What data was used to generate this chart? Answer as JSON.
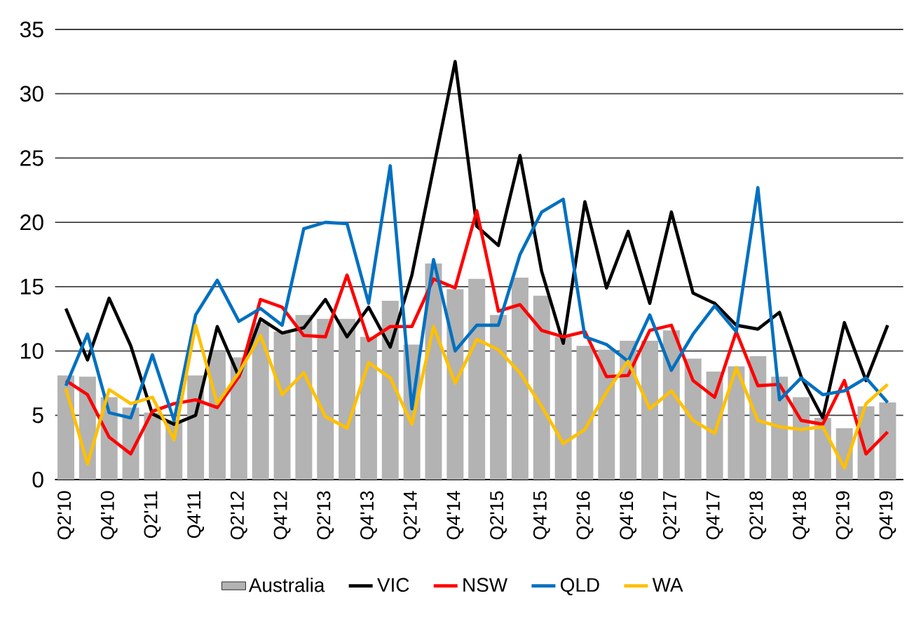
{
  "chart_data": {
    "type": "line",
    "categories": [
      "Q2'10",
      null,
      "Q4'10",
      null,
      "Q2'11",
      null,
      "Q4'11",
      null,
      "Q2'12",
      null,
      "Q4'12",
      null,
      "Q2'13",
      null,
      "Q4'13",
      null,
      "Q2'14",
      null,
      "Q4'14",
      null,
      "Q2'15",
      null,
      "Q4'15",
      null,
      "Q2'16",
      null,
      "Q4'16",
      null,
      "Q2'17",
      null,
      "Q4'17",
      null,
      "Q2'18",
      null,
      "Q4'18",
      null,
      "Q2'19",
      null,
      "Q4'19"
    ],
    "ylim": [
      0,
      35
    ],
    "yticks": [
      0,
      5,
      10,
      15,
      20,
      25,
      30,
      35
    ],
    "grid": "y",
    "legend": "bottom",
    "marker": "none",
    "line_style": "solid",
    "series": [
      {
        "name": "Australia",
        "type": "bar",
        "color": "#b3b3b3",
        "values": [
          8.1,
          8.0,
          6.4,
          5.6,
          5.2,
          4.6,
          8.1,
          10.0,
          9.5,
          12.2,
          11.5,
          12.8,
          12.5,
          12.5,
          11.1,
          13.9,
          10.5,
          16.8,
          14.8,
          15.6,
          12.8,
          15.7,
          14.3,
          11.1,
          10.4,
          10.1,
          10.8,
          10.8,
          11.6,
          9.4,
          8.4,
          8.8,
          9.6,
          8.0,
          6.4,
          4.8,
          4.0,
          5.7,
          6.0
        ]
      },
      {
        "name": "VIC",
        "color": "#000000",
        "values": [
          13.3,
          9.3,
          14.1,
          10.4,
          5.1,
          4.3,
          5.0,
          11.9,
          8.0,
          12.5,
          11.4,
          11.8,
          14.0,
          11.1,
          13.4,
          10.3,
          15.9,
          24.2,
          32.5,
          19.7,
          18.2,
          25.2,
          16.2,
          10.6,
          21.6,
          14.9,
          19.3,
          13.7,
          20.8,
          14.5,
          13.7,
          12.0,
          11.7,
          13.0,
          8.0,
          4.8,
          12.2,
          7.7,
          12.0
        ]
      },
      {
        "name": "NSW",
        "color": "#ff0000",
        "values": [
          7.7,
          6.6,
          3.3,
          2.0,
          5.3,
          5.9,
          6.2,
          5.6,
          8.0,
          14.0,
          13.4,
          11.2,
          11.1,
          15.9,
          10.8,
          11.9,
          11.9,
          15.6,
          14.9,
          20.9,
          13.1,
          13.6,
          11.6,
          11.1,
          11.5,
          8.0,
          8.1,
          11.6,
          12.0,
          7.7,
          6.4,
          11.5,
          7.3,
          7.4,
          4.6,
          4.3,
          7.7,
          2.0,
          3.7
        ]
      },
      {
        "name": "QLD",
        "color": "#0070c0",
        "values": [
          7.3,
          11.3,
          5.2,
          4.8,
          9.7,
          4.6,
          12.8,
          15.5,
          12.3,
          13.3,
          12.0,
          19.5,
          20.0,
          19.9,
          13.7,
          24.4,
          5.5,
          17.1,
          10.0,
          12.0,
          12.0,
          17.5,
          20.8,
          21.8,
          11.1,
          10.5,
          9.2,
          12.8,
          8.5,
          11.3,
          13.5,
          11.5,
          22.7,
          6.2,
          7.9,
          6.6,
          6.9,
          7.9,
          6.0
        ]
      },
      {
        "name": "WA",
        "color": "#ffc000",
        "values": [
          7.1,
          1.2,
          7.0,
          5.9,
          6.4,
          3.1,
          12.0,
          5.9,
          8.3,
          11.2,
          6.6,
          8.3,
          4.9,
          4.0,
          9.1,
          7.9,
          4.3,
          11.9,
          7.5,
          10.9,
          10.1,
          8.3,
          5.7,
          2.8,
          3.9,
          6.8,
          9.2,
          5.5,
          6.9,
          4.6,
          3.6,
          8.7,
          4.6,
          4.1,
          3.9,
          4.1,
          0.9,
          5.9,
          7.4
        ]
      }
    ]
  }
}
